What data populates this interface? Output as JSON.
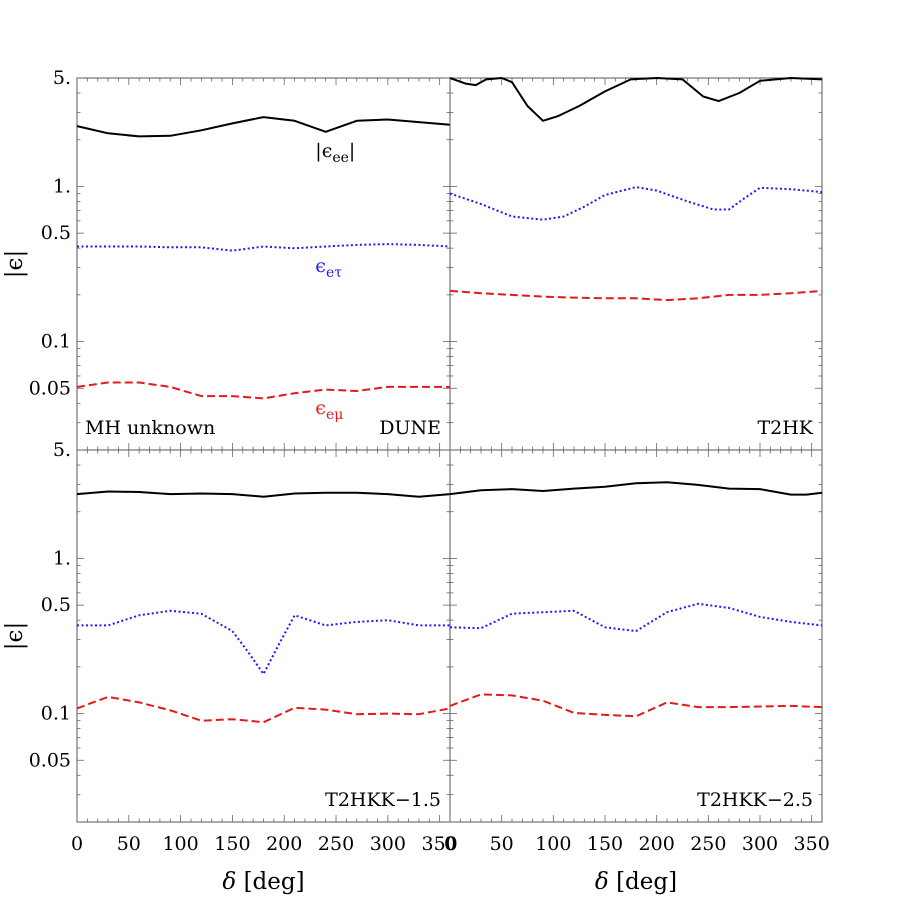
{
  "chart_data": {
    "type": "line",
    "y_scale": "log",
    "ylim": [
      0.02,
      5
    ],
    "xlim": [
      0,
      360
    ],
    "x_ticks": [
      0,
      50,
      100,
      150,
      200,
      250,
      300,
      350
    ],
    "y_ticks": [
      {
        "value": 5,
        "label": "5."
      },
      {
        "value": 1,
        "label": "1."
      },
      {
        "value": 0.5,
        "label": "0.5"
      },
      {
        "value": 0.1,
        "label": "0.1"
      },
      {
        "value": 0.05,
        "label": "0.05"
      }
    ],
    "xlabel_symbol": "δ",
    "xlabel_unit": " [deg]",
    "ylabel": "|ϵ|",
    "colors": {
      "ee": "#000000",
      "etau": "#1a1aff",
      "emu": "#e31a1a"
    },
    "series_styles": {
      "ee": "solid",
      "etau": "dotted",
      "emu": "dashed"
    },
    "series_labels": {
      "ee": {
        "prefix": "|ϵ",
        "sub": "ee",
        "suffix": "|"
      },
      "etau": {
        "prefix": "ϵ",
        "sub": "eτ",
        "suffix": ""
      },
      "emu": {
        "prefix": "ϵ",
        "sub": "eμ",
        "suffix": ""
      }
    },
    "panels": [
      {
        "id": "dune",
        "label_left": "MH unknown",
        "label_right": "DUNE",
        "series": {
          "ee": {
            "x": [
              0,
              30,
              60,
              90,
              120,
              150,
              180,
              210,
              240,
              270,
              300,
              330,
              360
            ],
            "y": [
              2.45,
              2.2,
              2.1,
              2.12,
              2.3,
              2.55,
              2.8,
              2.65,
              2.25,
              2.65,
              2.7,
              2.6,
              2.5
            ]
          },
          "etau": {
            "x": [
              0,
              30,
              60,
              90,
              120,
              150,
              180,
              210,
              240,
              270,
              300,
              330,
              360
            ],
            "y": [
              0.41,
              0.41,
              0.41,
              0.405,
              0.405,
              0.385,
              0.41,
              0.4,
              0.41,
              0.42,
              0.425,
              0.42,
              0.41
            ]
          },
          "emu": {
            "x": [
              0,
              30,
              60,
              90,
              120,
              150,
              180,
              210,
              240,
              270,
              300,
              330,
              360
            ],
            "y": [
              0.051,
              0.0545,
              0.0545,
              0.051,
              0.0445,
              0.0445,
              0.043,
              0.0465,
              0.049,
              0.048,
              0.051,
              0.051,
              0.051
            ]
          }
        }
      },
      {
        "id": "t2hk",
        "label_left": "",
        "label_right": "T2HK",
        "series": {
          "ee": {
            "x": [
              0,
              15,
              25,
              35,
              50,
              60,
              75,
              90,
              105,
              125,
              150,
              175,
              200,
              225,
              245,
              260,
              280,
              300,
              330,
              360
            ],
            "y": [
              5.0,
              4.6,
              4.5,
              4.9,
              5.0,
              4.7,
              3.3,
              2.65,
              2.85,
              3.3,
              4.1,
              4.9,
              5.05,
              4.9,
              3.8,
              3.55,
              4.0,
              4.8,
              5.05,
              4.9
            ]
          },
          "etau": {
            "x": [
              0,
              30,
              60,
              90,
              110,
              130,
              150,
              180,
              200,
              230,
              255,
              270,
              285,
              300,
              330,
              360
            ],
            "y": [
              0.9,
              0.77,
              0.64,
              0.61,
              0.64,
              0.74,
              0.88,
              0.99,
              0.94,
              0.8,
              0.71,
              0.71,
              0.84,
              0.98,
              0.96,
              0.92
            ]
          },
          "emu": {
            "x": [
              0,
              30,
              60,
              90,
              120,
              150,
              180,
              210,
              240,
              270,
              300,
              330,
              360
            ],
            "y": [
              0.212,
              0.205,
              0.2,
              0.195,
              0.192,
              0.19,
              0.19,
              0.185,
              0.19,
              0.2,
              0.2,
              0.205,
              0.212
            ]
          }
        }
      },
      {
        "id": "t2hkk15",
        "label_left": "",
        "label_right": "T2HKK−1.5",
        "series": {
          "ee": {
            "x": [
              0,
              30,
              60,
              90,
              120,
              150,
              180,
              210,
              240,
              270,
              300,
              330,
              360
            ],
            "y": [
              2.6,
              2.7,
              2.68,
              2.6,
              2.62,
              2.6,
              2.5,
              2.62,
              2.65,
              2.65,
              2.6,
              2.5,
              2.6
            ]
          },
          "etau": {
            "x": [
              0,
              30,
              60,
              90,
              120,
              150,
              165,
              180,
              195,
              210,
              240,
              270,
              300,
              330,
              360
            ],
            "y": [
              0.37,
              0.37,
              0.43,
              0.46,
              0.44,
              0.34,
              0.25,
              0.18,
              0.28,
              0.43,
              0.37,
              0.39,
              0.4,
              0.37,
              0.37
            ]
          },
          "emu": {
            "x": [
              0,
              30,
              60,
              90,
              120,
              150,
              180,
              210,
              240,
              270,
              300,
              330,
              360
            ],
            "y": [
              0.108,
              0.128,
              0.118,
              0.105,
              0.09,
              0.092,
              0.088,
              0.109,
              0.106,
              0.099,
              0.1,
              0.099,
              0.108
            ]
          }
        }
      },
      {
        "id": "t2hkk25",
        "label_left": "",
        "label_right": "T2HKK−2.5",
        "series": {
          "ee": {
            "x": [
              0,
              30,
              60,
              90,
              120,
              150,
              180,
              210,
              240,
              270,
              300,
              330,
              345,
              360
            ],
            "y": [
              2.6,
              2.75,
              2.8,
              2.72,
              2.82,
              2.9,
              3.05,
              3.1,
              2.98,
              2.82,
              2.8,
              2.58,
              2.58,
              2.65
            ]
          },
          "etau": {
            "x": [
              0,
              30,
              60,
              90,
              120,
              150,
              180,
              210,
              240,
              270,
              300,
              330,
              360
            ],
            "y": [
              0.36,
              0.355,
              0.44,
              0.45,
              0.46,
              0.36,
              0.34,
              0.45,
              0.51,
              0.48,
              0.42,
              0.39,
              0.37
            ]
          },
          "emu": {
            "x": [
              0,
              30,
              60,
              90,
              120,
              150,
              180,
              210,
              240,
              270,
              300,
              330,
              360
            ],
            "y": [
              0.112,
              0.133,
              0.131,
              0.121,
              0.101,
              0.098,
              0.096,
              0.118,
              0.11,
              0.11,
              0.111,
              0.112,
              0.11
            ]
          }
        }
      }
    ],
    "annotations": [
      {
        "panel": 0,
        "series": "ee",
        "at_x": 230,
        "at_y": 1.55
      },
      {
        "panel": 0,
        "series": "etau",
        "at_x": 230,
        "at_y": 0.28
      },
      {
        "panel": 0,
        "series": "emu",
        "at_x": 230,
        "at_y": 0.034
      }
    ]
  }
}
